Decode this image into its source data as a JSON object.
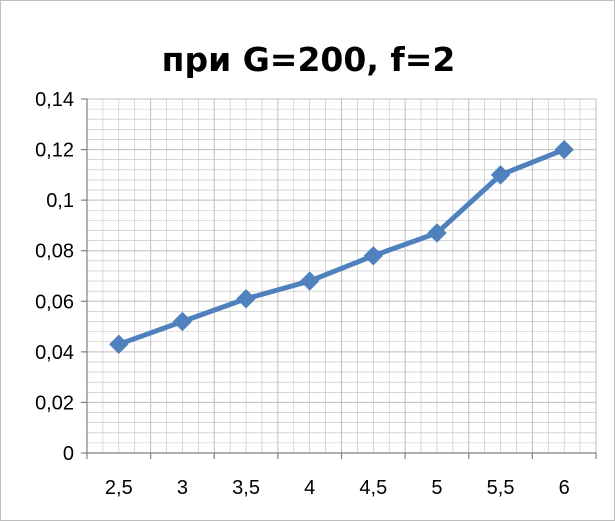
{
  "chart_data": {
    "type": "line",
    "title": "при G=200, f=2",
    "x": [
      "2,5",
      "3",
      "3,5",
      "4",
      "4,5",
      "5",
      "5,5",
      "6"
    ],
    "series": [
      {
        "values": [
          0.043,
          0.052,
          0.061,
          0.068,
          0.078,
          0.087,
          0.11,
          0.12
        ],
        "color": "#4f81bd",
        "marker": "diamond"
      }
    ],
    "y_ticks": [
      "0",
      "0,02",
      "0,04",
      "0,06",
      "0,08",
      "0,1",
      "0,12",
      "0,14"
    ],
    "ylim": [
      0,
      0.14
    ],
    "xlabel": "",
    "ylabel": "",
    "grid": true,
    "legend": "none",
    "colors": {
      "line": "#4f81bd",
      "grid": "#bfbfbf",
      "axis": "#808080"
    }
  }
}
